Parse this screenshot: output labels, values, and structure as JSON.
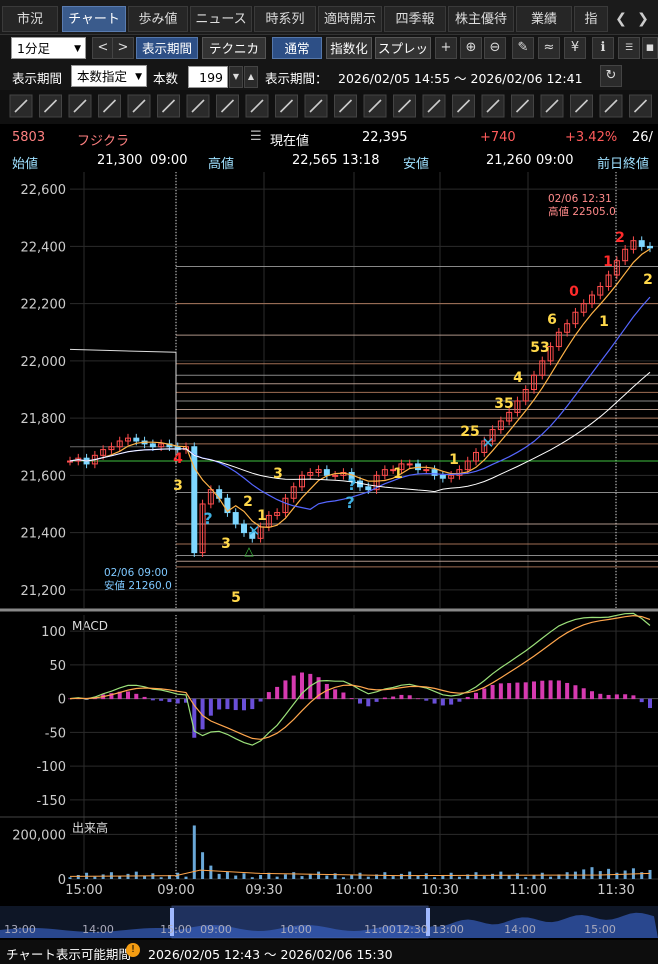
{
  "tabs": [
    {
      "label": "市況",
      "active": false
    },
    {
      "label": "チャート",
      "active": true
    },
    {
      "label": "歩み値",
      "active": false
    },
    {
      "label": "ニュース",
      "active": false
    },
    {
      "label": "時系列",
      "active": false
    },
    {
      "label": "適時開示",
      "active": false
    },
    {
      "label": "四季報",
      "active": false
    },
    {
      "label": "株主優待",
      "active": false
    },
    {
      "label": "業績",
      "active": false
    },
    {
      "label": "指",
      "active": false
    }
  ],
  "toolbar1": {
    "interval": "1分足",
    "period_button": "表示期間",
    "technical_button": "テクニカル",
    "normal_button": "通常",
    "index_button": "指数化",
    "spread_button": "スプレッド"
  },
  "toolbar2": {
    "period_label": "表示期間",
    "period_select": "本数指定",
    "count_label": "本数",
    "count_value": "199",
    "range_label": "表示期間：",
    "range_value": "2026/02/05 14:55 〜 2026/02/06 12:41"
  },
  "quote": {
    "code": "5803",
    "name": "フジクラ",
    "current_label": "現在値",
    "current": "22,395",
    "change": "+740",
    "change_pct": "+3.42%",
    "time": "26/",
    "open_label": "始値",
    "open": "21,300",
    "open_time": "09:00",
    "high_label": "高値",
    "high": "22,565",
    "high_time": "13:18",
    "low_label": "安値",
    "low": "21,260",
    "low_time": "09:00",
    "prev_label": "前日終値"
  },
  "chart_data": {
    "type": "candlestick",
    "price_axis": {
      "ticks": [
        "22,600",
        "22,400",
        "22,200",
        "22,000",
        "21,800",
        "21,600",
        "21,400",
        "21,200"
      ],
      "range": [
        21140,
        22660
      ]
    },
    "time_ticks": [
      "15:00",
      "09:00",
      "09:30",
      "10:00",
      "10:30",
      "11:00",
      "11:30"
    ],
    "annotations": {
      "high": {
        "time": "02/06 12:31",
        "label": "高値 22505.0"
      },
      "low": {
        "time": "02/06 09:00",
        "label": "安値 21260.0"
      }
    },
    "close_series": [
      21650,
      21660,
      21640,
      21670,
      21690,
      21700,
      21720,
      21730,
      21720,
      21710,
      21700,
      21710,
      21700,
      21690,
      21700,
      21330,
      21500,
      21550,
      21520,
      21470,
      21430,
      21400,
      21380,
      21420,
      21460,
      21470,
      21520,
      21560,
      21600,
      21610,
      21620,
      21600,
      21600,
      21610,
      21580,
      21560,
      21550,
      21600,
      21620,
      21620,
      21640,
      21640,
      21620,
      21620,
      21600,
      21590,
      21600,
      21620,
      21650,
      21680,
      21720,
      21760,
      21790,
      21820,
      21860,
      21900,
      21950,
      22000,
      22050,
      22100,
      22130,
      22170,
      22200,
      22230,
      22260,
      22300,
      22350,
      22390,
      22420,
      22400,
      22395
    ],
    "macd": {
      "label": "MACD",
      "ticks": [
        "100",
        "50",
        "0",
        "-50",
        "-100",
        "-150"
      ]
    },
    "volume": {
      "label": "出来高",
      "ticks": [
        "200,000",
        "0"
      ]
    }
  },
  "navigator": {
    "ticks": [
      "13:00",
      "14:00",
      "15:00",
      "09:00",
      "10:00",
      "11:00",
      "12:30",
      "13:00",
      "14:00",
      "15:00"
    ]
  },
  "footer": {
    "label": "チャート表示可能期間",
    "range": "2026/02/05 12:43 〜 2026/02/06 15:30"
  },
  "colors": {
    "up": "#ff4d4d",
    "down": "#7fd7ff",
    "ma_short": "#ffb347",
    "ma_mid": "#5566ff",
    "ma_long": "#ffffff",
    "signal_yellow": "#ffd84a",
    "signal_red": "#ff2a2a"
  }
}
